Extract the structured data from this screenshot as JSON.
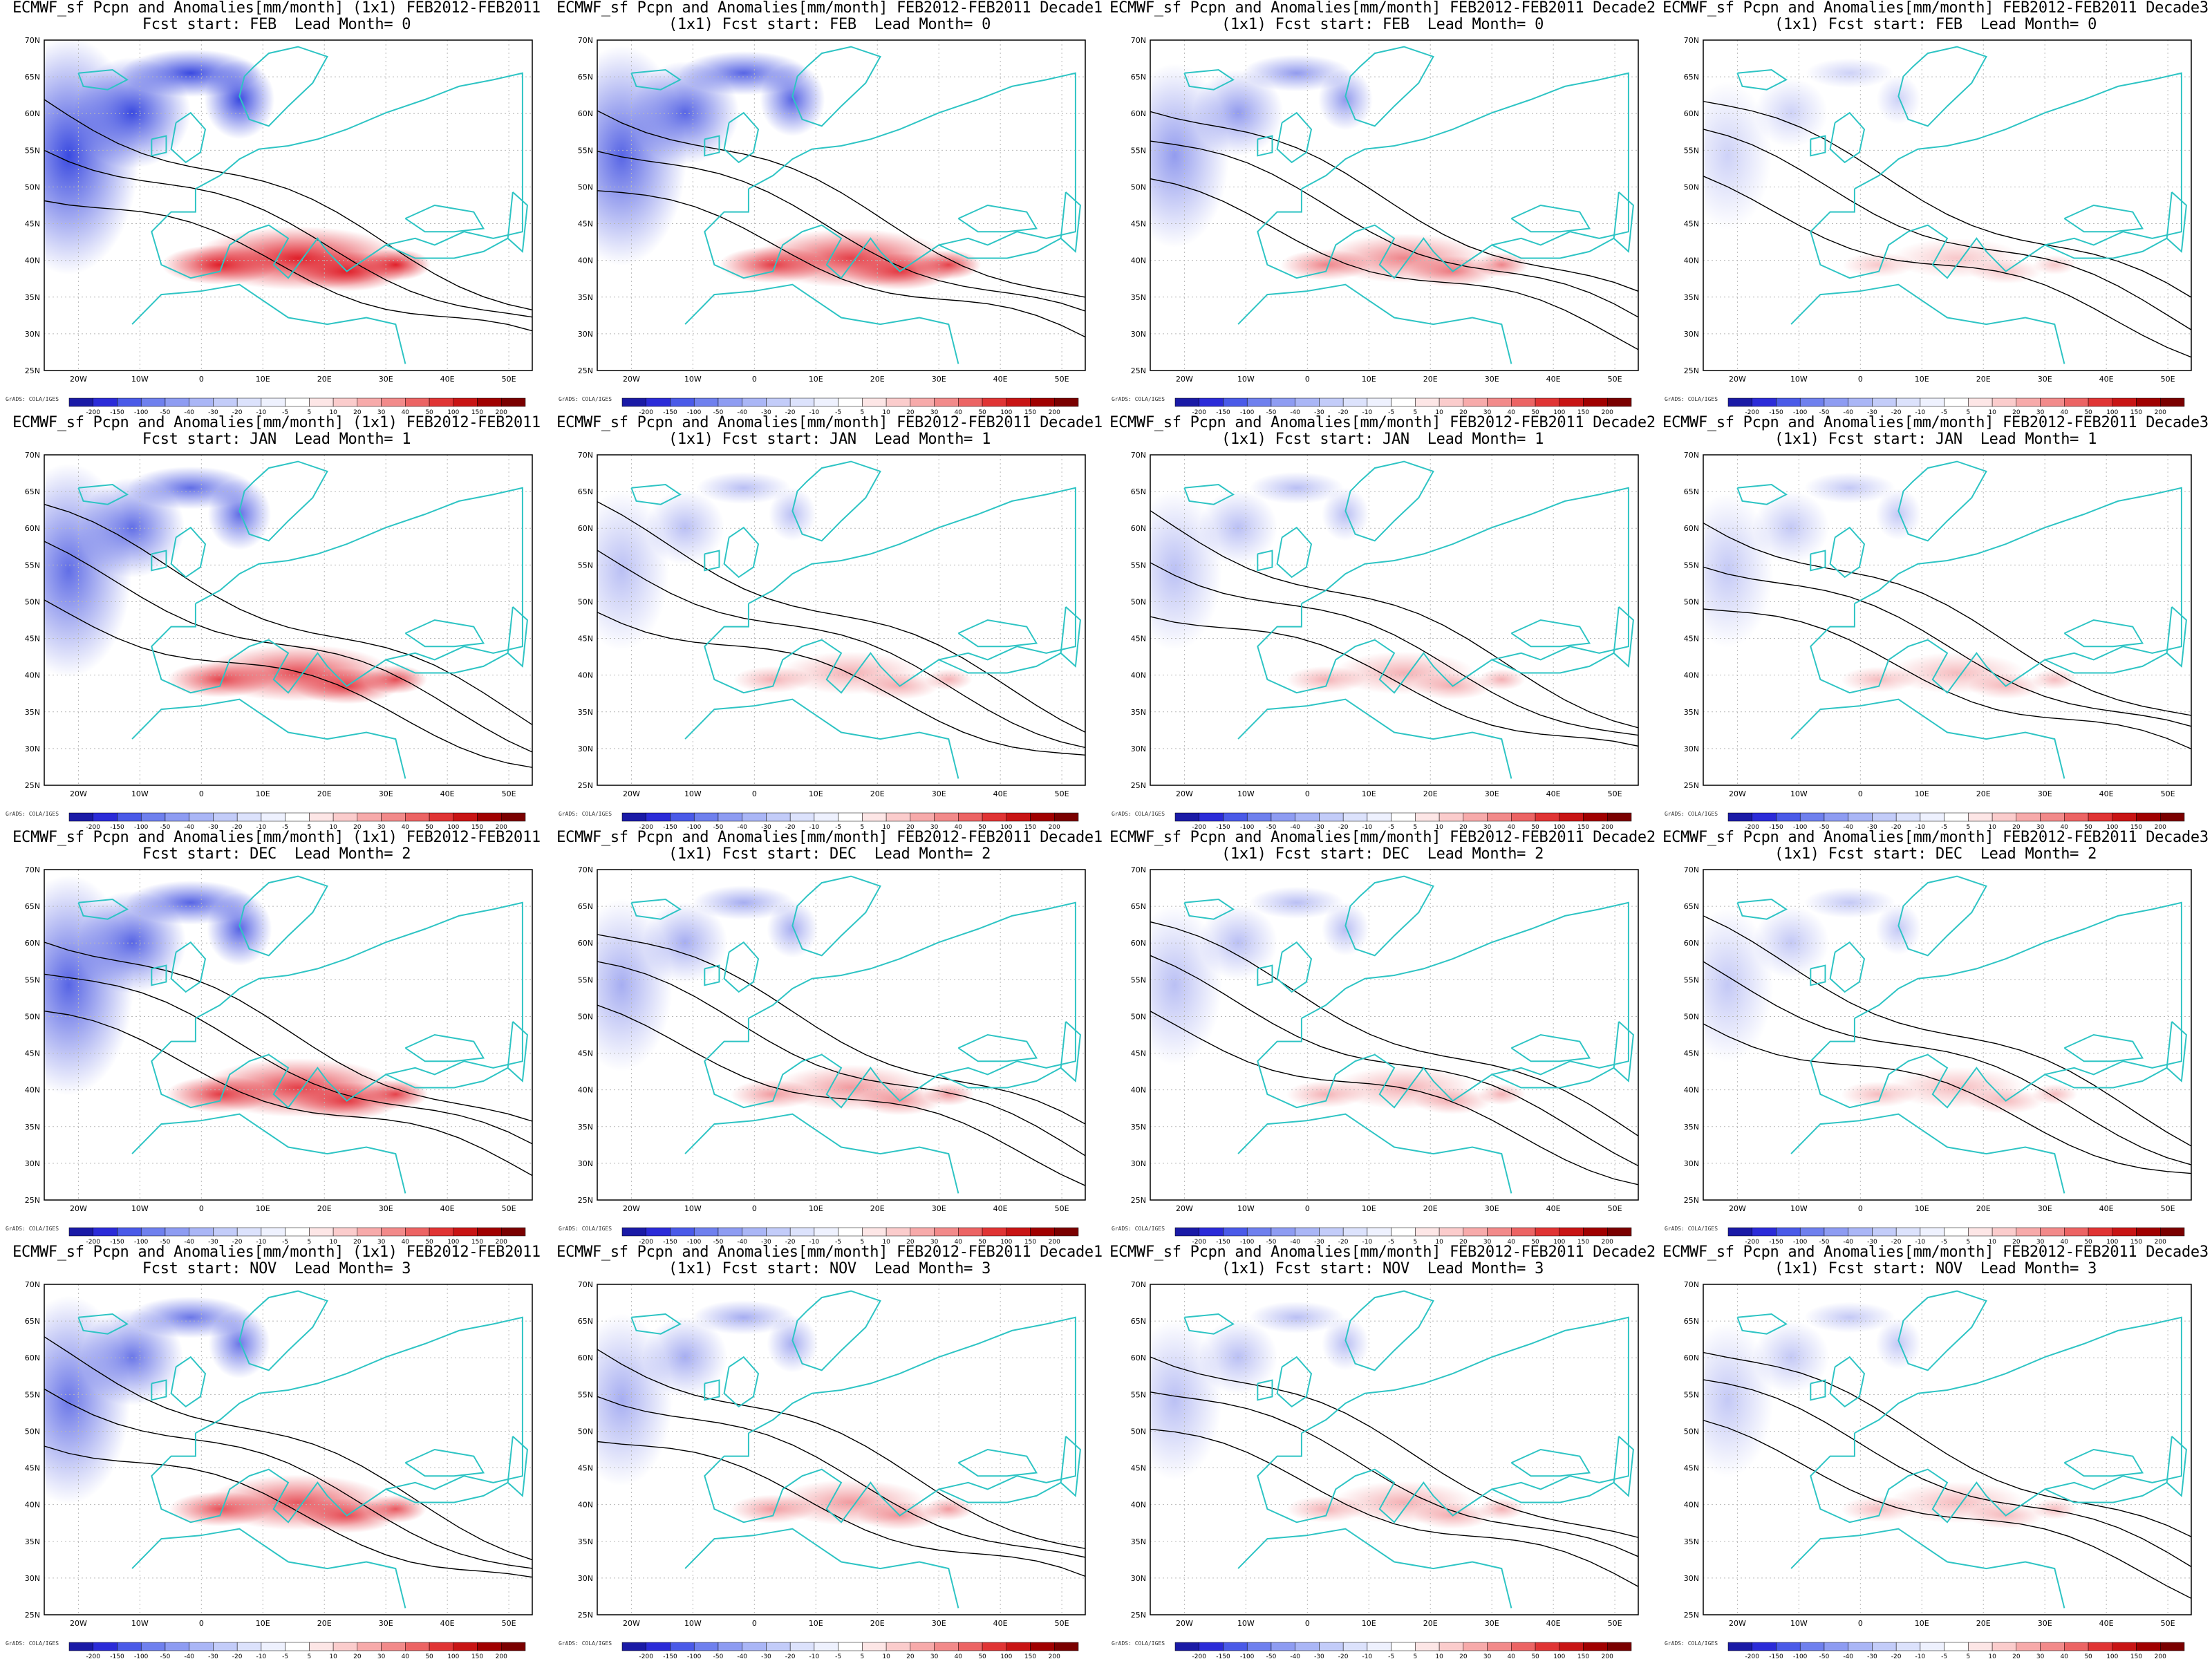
{
  "figure": {
    "panels": [
      {
        "title_line1": "ECMWF_sf Pcpn and Anomalies[mm/month] (1x1) FEB2012-FEB2011",
        "title_line2": "Fcst start: FEB  Lead Month= 0",
        "intensity": 1.0
      },
      {
        "title_line1": "ECMWF_sf Pcpn and Anomalies[mm/month] FEB2012-FEB2011 Decade1",
        "title_line2": "(1x1) Fcst start: FEB  Lead Month= 0",
        "intensity": 0.85
      },
      {
        "title_line1": "ECMWF_sf Pcpn and Anomalies[mm/month] FEB2012-FEB2011 Decade2",
        "title_line2": "(1x1) Fcst start: FEB  Lead Month= 0",
        "intensity": 0.55
      },
      {
        "title_line1": "ECMWF_sf Pcpn and Anomalies[mm/month] FEB2012-FEB2011 Decade3",
        "title_line2": "(1x1) Fcst start: FEB  Lead Month= 0",
        "intensity": 0.25
      },
      {
        "title_line1": "ECMWF_sf Pcpn and Anomalies[mm/month] (1x1) FEB2012-FEB2011",
        "title_line2": "Fcst start: JAN  Lead Month= 1",
        "intensity": 0.8
      },
      {
        "title_line1": "ECMWF_sf Pcpn and Anomalies[mm/month] FEB2012-FEB2011 Decade1",
        "title_line2": "(1x1) Fcst start: JAN  Lead Month= 1",
        "intensity": 0.35
      },
      {
        "title_line1": "ECMWF_sf Pcpn and Anomalies[mm/month] FEB2012-FEB2011 Decade2",
        "title_line2": "(1x1) Fcst start: JAN  Lead Month= 1",
        "intensity": 0.35
      },
      {
        "title_line1": "ECMWF_sf Pcpn and Anomalies[mm/month] FEB2012-FEB2011 Decade3",
        "title_line2": "(1x1) Fcst start: JAN  Lead Month= 1",
        "intensity": 0.3
      },
      {
        "title_line1": "ECMWF_sf Pcpn and Anomalies[mm/month] (1x1) FEB2012-FEB2011",
        "title_line2": "Fcst start: DEC  Lead Month= 2",
        "intensity": 0.85
      },
      {
        "title_line1": "ECMWF_sf Pcpn and Anomalies[mm/month] FEB2012-FEB2011 Decade1",
        "title_line2": "(1x1) Fcst start: DEC  Lead Month= 2",
        "intensity": 0.45
      },
      {
        "title_line1": "ECMWF_sf Pcpn and Anomalies[mm/month] FEB2012-FEB2011 Decade2",
        "title_line2": "(1x1) Fcst start: DEC  Lead Month= 2",
        "intensity": 0.35
      },
      {
        "title_line1": "ECMWF_sf Pcpn and Anomalies[mm/month] FEB2012-FEB2011 Decade3",
        "title_line2": "(1x1) Fcst start: DEC  Lead Month= 2",
        "intensity": 0.3
      },
      {
        "title_line1": "ECMWF_sf Pcpn and Anomalies[mm/month] (1x1) FEB2012-FEB2011",
        "title_line2": "Fcst start: NOV  Lead Month= 3",
        "intensity": 0.75
      },
      {
        "title_line1": "ECMWF_sf Pcpn and Anomalies[mm/month] FEB2012-FEB2011 Decade1",
        "title_line2": "(1x1) Fcst start: NOV  Lead Month= 3",
        "intensity": 0.45
      },
      {
        "title_line1": "ECMWF_sf Pcpn and Anomalies[mm/month] FEB2012-FEB2011 Decade2",
        "title_line2": "(1x1) Fcst start: NOV  Lead Month= 3",
        "intensity": 0.35
      },
      {
        "title_line1": "ECMWF_sf Pcpn and Anomalies[mm/month] FEB2012-FEB2011 Decade3",
        "title_line2": "(1x1) Fcst start: NOV  Lead Month= 3",
        "intensity": 0.3
      }
    ],
    "lat_labels": [
      "70N",
      "65N",
      "60N",
      "55N",
      "50N",
      "45N",
      "40N",
      "35N",
      "30N",
      "25N"
    ],
    "lon_labels": [
      "20W",
      "10W",
      "0",
      "10E",
      "20E",
      "30E",
      "40E",
      "50E"
    ],
    "colorbar": {
      "labels": [
        "-200",
        "-150",
        "-100",
        "-50",
        "-40",
        "-30",
        "-20",
        "-10",
        "-5",
        "5",
        "10",
        "20",
        "30",
        "40",
        "50",
        "100",
        "150",
        "200"
      ],
      "colors": [
        "#1a1aa6",
        "#2b2bd8",
        "#4a5ae8",
        "#6f80ee",
        "#8e9cf2",
        "#aab6f6",
        "#c3ccf9",
        "#dce2fc",
        "#eef1fe",
        "#ffffff",
        "#fde6e6",
        "#fbcccc",
        "#f7aaaa",
        "#f28a8a",
        "#ec6464",
        "#e03434",
        "#c81414",
        "#a00000",
        "#7a0000"
      ]
    },
    "source_text": "GrADS: COLA/IGES",
    "colors": {
      "coast": "#2ec4c4",
      "contour": "#000000",
      "dry": "#3a4ae0",
      "wet": "#e0202a",
      "grid": "#b8b8b8"
    }
  }
}
